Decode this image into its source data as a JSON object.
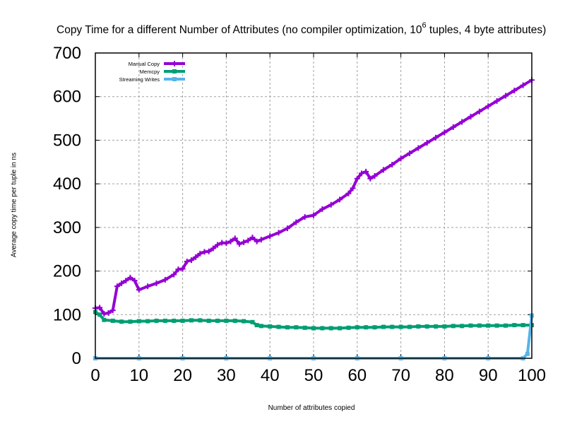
{
  "title_prefix": "Copy Time for a different Number of Attributes (no compiler optimization, 10",
  "title_exp": "6",
  "title_suffix": " tuples, 4 byte attributes)",
  "chart_data": {
    "type": "line",
    "title": "Copy Time for a different Number of Attributes (no compiler optimization, 10^6 tuples, 4 byte attributes)",
    "xlabel": "Number of attributes copied",
    "ylabel": "Average copy time per tuple in ns",
    "xlim": [
      0,
      100
    ],
    "ylim": [
      0,
      700
    ],
    "xticks": [
      0,
      10,
      20,
      30,
      40,
      50,
      60,
      70,
      80,
      90,
      100
    ],
    "yticks": [
      0,
      100,
      200,
      300,
      400,
      500,
      600,
      700
    ],
    "grid": true,
    "legend_position": "top-left",
    "series": [
      {
        "name": "Manual Copy",
        "color": "#9400d3",
        "marker": "plus",
        "points": [
          [
            0,
            115
          ],
          [
            1,
            116
          ],
          [
            2,
            102
          ],
          [
            3,
            104
          ],
          [
            4,
            110
          ],
          [
            5,
            165
          ],
          [
            6,
            172
          ],
          [
            7,
            178
          ],
          [
            8,
            185
          ],
          [
            9,
            178
          ],
          [
            10,
            157
          ],
          [
            12,
            165
          ],
          [
            14,
            172
          ],
          [
            16,
            180
          ],
          [
            18,
            192
          ],
          [
            19,
            204
          ],
          [
            20,
            205
          ],
          [
            21,
            222
          ],
          [
            22,
            225
          ],
          [
            23,
            232
          ],
          [
            24,
            240
          ],
          [
            25,
            244
          ],
          [
            26,
            245
          ],
          [
            27,
            252
          ],
          [
            28,
            260
          ],
          [
            29,
            265
          ],
          [
            30,
            264
          ],
          [
            31,
            268
          ],
          [
            32,
            275
          ],
          [
            33,
            262
          ],
          [
            34,
            266
          ],
          [
            35,
            270
          ],
          [
            36,
            277
          ],
          [
            37,
            268
          ],
          [
            38,
            272
          ],
          [
            40,
            280
          ],
          [
            42,
            288
          ],
          [
            44,
            298
          ],
          [
            46,
            312
          ],
          [
            48,
            324
          ],
          [
            50,
            328
          ],
          [
            52,
            342
          ],
          [
            54,
            352
          ],
          [
            56,
            364
          ],
          [
            58,
            378
          ],
          [
            59,
            390
          ],
          [
            60,
            412
          ],
          [
            61,
            424
          ],
          [
            62,
            428
          ],
          [
            63,
            412
          ],
          [
            64,
            418
          ],
          [
            66,
            432
          ],
          [
            68,
            444
          ],
          [
            70,
            458
          ],
          [
            72,
            470
          ],
          [
            74,
            482
          ],
          [
            76,
            494
          ],
          [
            78,
            506
          ],
          [
            80,
            518
          ],
          [
            82,
            530
          ],
          [
            84,
            542
          ],
          [
            86,
            554
          ],
          [
            88,
            566
          ],
          [
            90,
            578
          ],
          [
            92,
            590
          ],
          [
            94,
            602
          ],
          [
            96,
            614
          ],
          [
            98,
            626
          ],
          [
            100,
            638
          ]
        ]
      },
      {
        "name": "Memcpy",
        "color": "#009e73",
        "marker": "square",
        "points": [
          [
            0,
            106
          ],
          [
            1,
            100
          ],
          [
            2,
            88
          ],
          [
            4,
            86
          ],
          [
            6,
            84
          ],
          [
            8,
            84
          ],
          [
            10,
            85
          ],
          [
            12,
            85
          ],
          [
            14,
            86
          ],
          [
            16,
            86
          ],
          [
            18,
            86
          ],
          [
            20,
            86
          ],
          [
            22,
            87
          ],
          [
            24,
            87
          ],
          [
            26,
            86
          ],
          [
            28,
            86
          ],
          [
            30,
            86
          ],
          [
            32,
            86
          ],
          [
            34,
            85
          ],
          [
            36,
            83
          ],
          [
            37,
            76
          ],
          [
            38,
            74
          ],
          [
            40,
            73
          ],
          [
            42,
            72
          ],
          [
            44,
            71
          ],
          [
            46,
            71
          ],
          [
            48,
            70
          ],
          [
            50,
            69
          ],
          [
            52,
            69
          ],
          [
            54,
            69
          ],
          [
            56,
            69
          ],
          [
            58,
            70
          ],
          [
            60,
            71
          ],
          [
            62,
            71
          ],
          [
            64,
            71
          ],
          [
            66,
            72
          ],
          [
            68,
            72
          ],
          [
            70,
            72
          ],
          [
            72,
            72
          ],
          [
            74,
            73
          ],
          [
            76,
            73
          ],
          [
            78,
            73
          ],
          [
            80,
            73
          ],
          [
            82,
            74
          ],
          [
            84,
            74
          ],
          [
            86,
            75
          ],
          [
            88,
            75
          ],
          [
            90,
            75
          ],
          [
            92,
            75
          ],
          [
            94,
            75
          ],
          [
            96,
            76
          ],
          [
            98,
            76
          ],
          [
            100,
            76
          ]
        ]
      },
      {
        "name": "Streaming Writes",
        "color": "#56b4e9",
        "marker": "square",
        "points": [
          [
            0,
            0
          ],
          [
            10,
            0
          ],
          [
            20,
            0
          ],
          [
            30,
            0
          ],
          [
            40,
            0
          ],
          [
            50,
            0
          ],
          [
            60,
            0
          ],
          [
            70,
            0
          ],
          [
            80,
            0
          ],
          [
            90,
            0
          ],
          [
            98,
            0
          ],
          [
            99,
            10
          ],
          [
            100,
            98
          ]
        ]
      }
    ]
  }
}
